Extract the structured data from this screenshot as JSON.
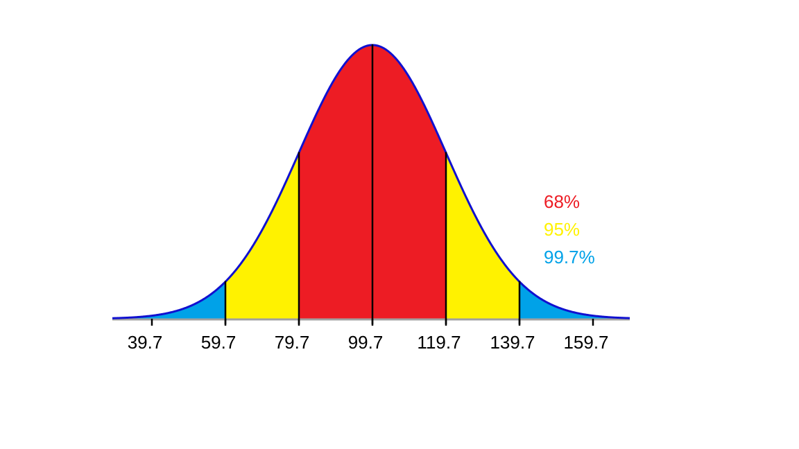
{
  "chart_data": {
    "type": "area",
    "title": "",
    "xlabel": "",
    "ylabel": "",
    "mean": 99.7,
    "sd": 20,
    "tick_labels": [
      "39.7",
      "59.7",
      "79.7",
      "99.7",
      "119.7",
      "139.7",
      "159.7"
    ],
    "tick_values": [
      39.7,
      59.7,
      79.7,
      99.7,
      119.7,
      139.7,
      159.7
    ],
    "divider_values": [
      59.7,
      79.7,
      99.7,
      119.7,
      139.7
    ],
    "regions": [
      {
        "label": "68%",
        "from": 79.7,
        "to": 119.7,
        "color": "#ed1c24"
      },
      {
        "label": "95%",
        "from": 59.7,
        "to": 139.7,
        "color": "#fff200"
      },
      {
        "label": "99.7%",
        "from": 39.7,
        "to": 159.7,
        "color": "#00a2e8"
      }
    ],
    "curve_color": "#1010d0",
    "baseline_color": "#a0a0a0",
    "legend_position": "right",
    "grid": false
  }
}
